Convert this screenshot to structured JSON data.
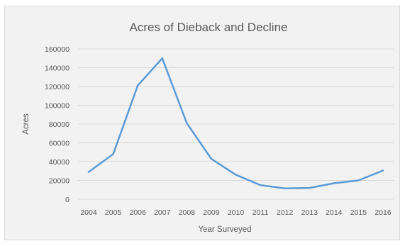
{
  "chart_data": {
    "type": "line",
    "title": "Acres of Dieback and Decline",
    "xlabel": "Year Surveyed",
    "ylabel": "Acres",
    "ylim": [
      0,
      160000
    ],
    "y_ticks": [
      "0",
      "20000",
      "40000",
      "60000",
      "80000",
      "100000",
      "120000",
      "140000",
      "160000"
    ],
    "categories": [
      "2004",
      "2005",
      "2006",
      "2007",
      "2008",
      "2009",
      "2010",
      "2011",
      "2012",
      "2013",
      "2014",
      "2015",
      "2016"
    ],
    "series": [
      {
        "values": [
          29000,
          48000,
          121000,
          150000,
          81000,
          43000,
          26000,
          15000,
          11500,
          12000,
          17000,
          20000,
          30500
        ]
      }
    ],
    "grid": true,
    "line_color": "#5b9bd5",
    "gridline_color": "#d9d9d9",
    "background_color": "#f2f2f2"
  }
}
